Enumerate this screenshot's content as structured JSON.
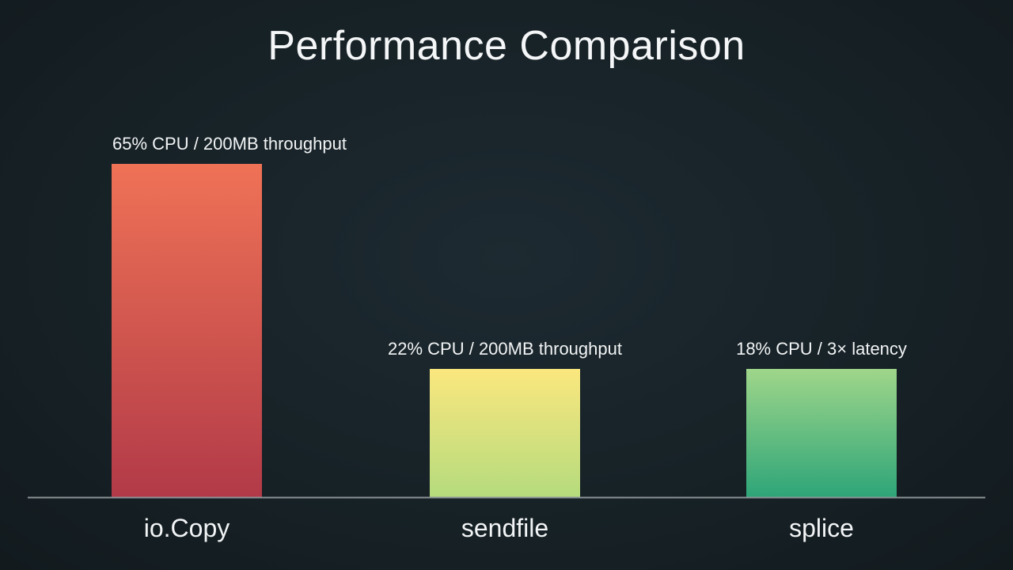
{
  "chart_data": {
    "type": "bar",
    "title": "Performance Comparison",
    "xlabel": "",
    "ylabel": "",
    "categories": [
      "io.Copy",
      "sendfile",
      "splice"
    ],
    "values": [
      65,
      22,
      18
    ],
    "value_unit": "% CPU",
    "data_labels": [
      "65% CPU / 200MB throughput",
      "22% CPU / 200MB throughput",
      "18% CPU / 3× latency"
    ],
    "ylim": [
      0,
      65
    ],
    "grid": false,
    "legend": "none",
    "bar_colors": [
      {
        "top": "#ef7256",
        "bottom": "#b23a48"
      },
      {
        "top": "#fbe77e",
        "bottom": "#b5db7d"
      },
      {
        "top": "#9fd68a",
        "bottom": "#2ea578"
      }
    ],
    "baseline_color": "#8b9397"
  }
}
